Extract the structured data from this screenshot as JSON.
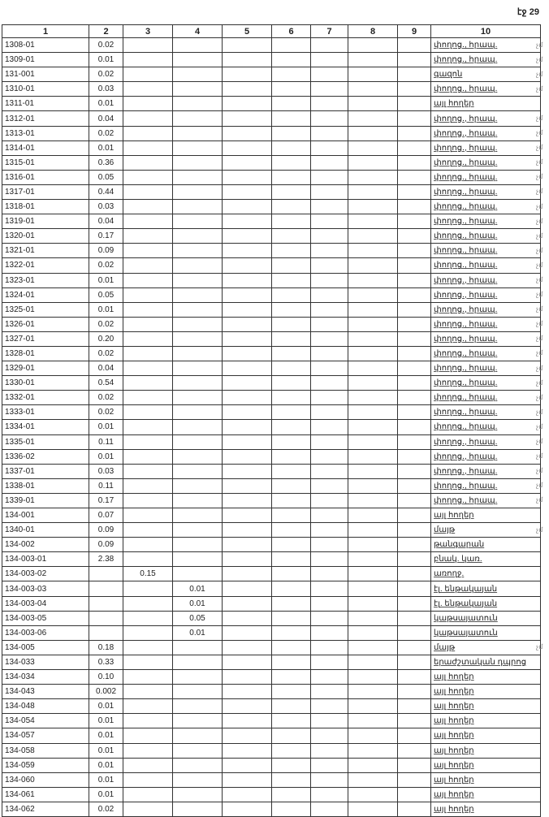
{
  "page_label": "էջ 29",
  "headers": [
    "1",
    "2",
    "3",
    "4",
    "5",
    "6",
    "7",
    "8",
    "9",
    "10"
  ],
  "rows": [
    [
      "1308-01",
      "0.02",
      "",
      "",
      "փողոց., հրապ.",
      "չմ"
    ],
    [
      "1309-01",
      "0.01",
      "",
      "",
      "փողոց., հրապ.",
      "չմ"
    ],
    [
      "131-001",
      "0.02",
      "",
      "",
      "գազոն",
      "չմ"
    ],
    [
      "1310-01",
      "0.03",
      "",
      "",
      "փողոց., հրապ.",
      "չմ"
    ],
    [
      "1311-01",
      "0.01",
      "",
      "",
      "այլ հողեր",
      ""
    ],
    [
      "1312-01",
      "0.04",
      "",
      "",
      "փողոց., հրապ.",
      "չմ"
    ],
    [
      "1313-01",
      "0.02",
      "",
      "",
      "փողոց., հրապ.",
      "չմ"
    ],
    [
      "1314-01",
      "0.01",
      "",
      "",
      "փողոց., հրապ.",
      "չմ"
    ],
    [
      "1315-01",
      "0.36",
      "",
      "",
      "փողոց., հրապ.",
      "չմ"
    ],
    [
      "1316-01",
      "0.05",
      "",
      "",
      "փողոց., հրապ.",
      "չմ"
    ],
    [
      "1317-01",
      "0.44",
      "",
      "",
      "փողոց., հրապ.",
      "չմ"
    ],
    [
      "1318-01",
      "0.03",
      "",
      "",
      "փողոց., հրապ.",
      "չմ"
    ],
    [
      "1319-01",
      "0.04",
      "",
      "",
      "փողոց., հրապ.",
      "չմ"
    ],
    [
      "1320-01",
      "0.17",
      "",
      "",
      "փողոց., հրապ.",
      "չմ"
    ],
    [
      "1321-01",
      "0.09",
      "",
      "",
      "փողոց., հրապ.",
      "չմ"
    ],
    [
      "1322-01",
      "0.02",
      "",
      "",
      "փողոց., հրապ.",
      "չմ"
    ],
    [
      "1323-01",
      "0.01",
      "",
      "",
      "փողոց., հրապ.",
      "չմ"
    ],
    [
      "1324-01",
      "0.05",
      "",
      "",
      "փողոց., հրապ.",
      "չմ"
    ],
    [
      "1325-01",
      "0.01",
      "",
      "",
      "փողոց., հրապ.",
      "չմ"
    ],
    [
      "1326-01",
      "0.02",
      "",
      "",
      "փողոց., հրապ.",
      "չմ"
    ],
    [
      "1327-01",
      "0.20",
      "",
      "",
      "փողոց., հրապ.",
      "չմ"
    ],
    [
      "1328-01",
      "0.02",
      "",
      "",
      "փողոց., հրապ.",
      "չմ"
    ],
    [
      "1329-01",
      "0.04",
      "",
      "",
      "փողոց., հրապ.",
      "չմ"
    ],
    [
      "1330-01",
      "0.54",
      "",
      "",
      "փողոց., հրապ.",
      "չմ"
    ],
    [
      "1332-01",
      "0.02",
      "",
      "",
      "փողոց., հրապ.",
      "չմ"
    ],
    [
      "1333-01",
      "0.02",
      "",
      "",
      "փողոց., հրապ.",
      "չմ"
    ],
    [
      "1334-01",
      "0.01",
      "",
      "",
      "փողոց., հրապ.",
      "չմ"
    ],
    [
      "1335-01",
      "0.11",
      "",
      "",
      "փողոց., հրապ.",
      "չմ"
    ],
    [
      "1336-02",
      "0.01",
      "",
      "",
      "փողոց., հրապ.",
      "չմ"
    ],
    [
      "1337-01",
      "0.03",
      "",
      "",
      "փողոց., հրապ.",
      "չմ"
    ],
    [
      "1338-01",
      "0.11",
      "",
      "",
      "փողոց., հրապ.",
      "չմ"
    ],
    [
      "1339-01",
      "0.17",
      "",
      "",
      "փողոց., հրապ.",
      "չմ"
    ],
    [
      "134-001",
      "0.07",
      "",
      "",
      "այլ հողեր",
      ""
    ],
    [
      "1340-01",
      "0.09",
      "",
      "",
      "մայթ",
      "չմ"
    ],
    [
      "134-002",
      "0.09",
      "",
      "",
      "թանգարան",
      ""
    ],
    [
      "134-003-01",
      "2.38",
      "",
      "",
      "բնակ. կառ.",
      ""
    ],
    [
      "134-003-02",
      "",
      "0.15",
      "",
      "առողջ.",
      ""
    ],
    [
      "134-003-03",
      "",
      "",
      "0.01",
      "էլ. ենթակայան",
      ""
    ],
    [
      "134-003-04",
      "",
      "",
      "0.01",
      "էլ. ենթակայան",
      ""
    ],
    [
      "134-003-05",
      "",
      "",
      "0.05",
      "կաթսայատուն",
      ""
    ],
    [
      "134-003-06",
      "",
      "",
      "0.01",
      "կաթսայատուն",
      ""
    ],
    [
      "134-005",
      "0.18",
      "",
      "",
      "մայթ",
      "չմ"
    ],
    [
      "134-033",
      "0.33",
      "",
      "",
      "երաժշտական դպրոց",
      ""
    ],
    [
      "134-034",
      "0.10",
      "",
      "",
      "այլ հողեր",
      ""
    ],
    [
      "134-043",
      "0.002",
      "",
      "",
      "այլ հողեր",
      ""
    ],
    [
      "134-048",
      "0.01",
      "",
      "",
      "այլ հողեր",
      ""
    ],
    [
      "134-054",
      "0.01",
      "",
      "",
      "այլ հողեր",
      ""
    ],
    [
      "134-057",
      "0.01",
      "",
      "",
      "այլ հողեր",
      ""
    ],
    [
      "134-058",
      "0.01",
      "",
      "",
      "այլ հողեր",
      ""
    ],
    [
      "134-059",
      "0.01",
      "",
      "",
      "այլ հողեր",
      ""
    ],
    [
      "134-060",
      "0.01",
      "",
      "",
      "այլ հողեր",
      ""
    ],
    [
      "134-061",
      "0.01",
      "",
      "",
      "այլ հողեր",
      ""
    ],
    [
      "134-062",
      "0.02",
      "",
      "",
      "այլ հողեր",
      ""
    ]
  ]
}
